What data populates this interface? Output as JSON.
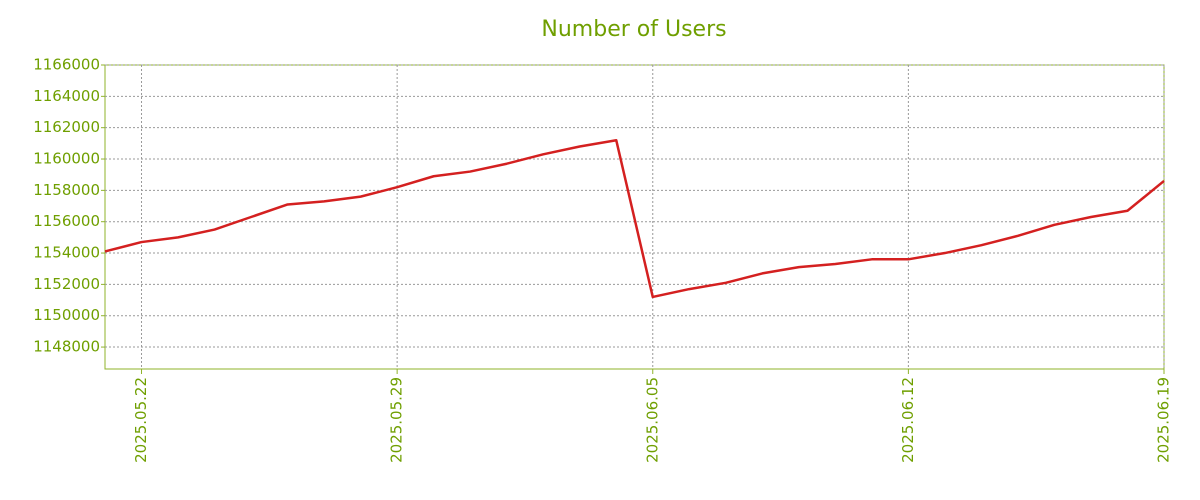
{
  "chart_data": {
    "type": "line",
    "title": "Number of Users",
    "x": [
      "2025.05.21",
      "2025.05.22",
      "2025.05.23",
      "2025.05.24",
      "2025.05.25",
      "2025.05.26",
      "2025.05.27",
      "2025.05.28",
      "2025.05.29",
      "2025.05.30",
      "2025.05.31",
      "2025.06.01",
      "2025.06.02",
      "2025.06.03",
      "2025.06.04",
      "2025.06.05",
      "2025.06.06",
      "2025.06.07",
      "2025.06.08",
      "2025.06.09",
      "2025.06.10",
      "2025.06.11",
      "2025.06.12",
      "2025.06.13",
      "2025.06.14",
      "2025.06.15",
      "2025.06.16",
      "2025.06.17",
      "2025.06.18",
      "2025.06.19"
    ],
    "series": [
      {
        "color": "#d42020",
        "values": [
          1154100,
          1154700,
          1155000,
          1155500,
          1156300,
          1157100,
          1157300,
          1157600,
          1158200,
          1158900,
          1159200,
          1159700,
          1160300,
          1160800,
          1161200,
          1151200,
          1151700,
          1152100,
          1152700,
          1153100,
          1153300,
          1153600,
          1153600,
          1154000,
          1154500,
          1155100,
          1155800,
          1156300,
          1156700,
          1158600
        ]
      }
    ],
    "xlim": [
      "2025.05.21",
      "2025.06.19"
    ],
    "xticks": [
      "2025.05.22",
      "2025.05.29",
      "2025.06.05",
      "2025.06.12",
      "2025.06.19"
    ],
    "ylim": [
      1146600,
      1166000
    ],
    "yticks": [
      1148000,
      1150000,
      1152000,
      1154000,
      1156000,
      1158000,
      1160000,
      1162000,
      1164000,
      1166000
    ],
    "grid": true
  }
}
